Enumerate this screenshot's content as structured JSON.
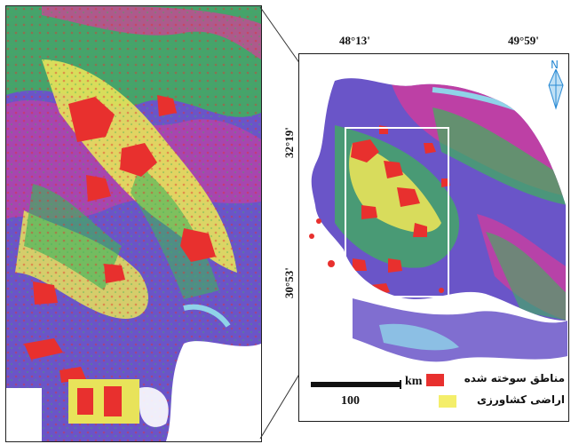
{
  "map": {
    "coords": {
      "lon_left": "48°13'",
      "lon_right": "49°59'",
      "lat_top": "32°19'",
      "lat_bottom": "30°53'"
    },
    "north_letter": "N",
    "scale_bar": {
      "unit": "km",
      "value": "100"
    },
    "legend": {
      "items": [
        {
          "label": "مناطق سوخته شده",
          "color": "#e8302e"
        },
        {
          "label": "اراضی کشاورزی",
          "color": "#f4ee6a"
        }
      ]
    },
    "colors": {
      "purple": "#6a55c8",
      "magenta": "#d93a9a",
      "green": "#3fb25a",
      "yellow": "#e8e35a",
      "red": "#e8302e",
      "cyan": "#8fd3e8",
      "frame": "#1a1a1a"
    }
  }
}
